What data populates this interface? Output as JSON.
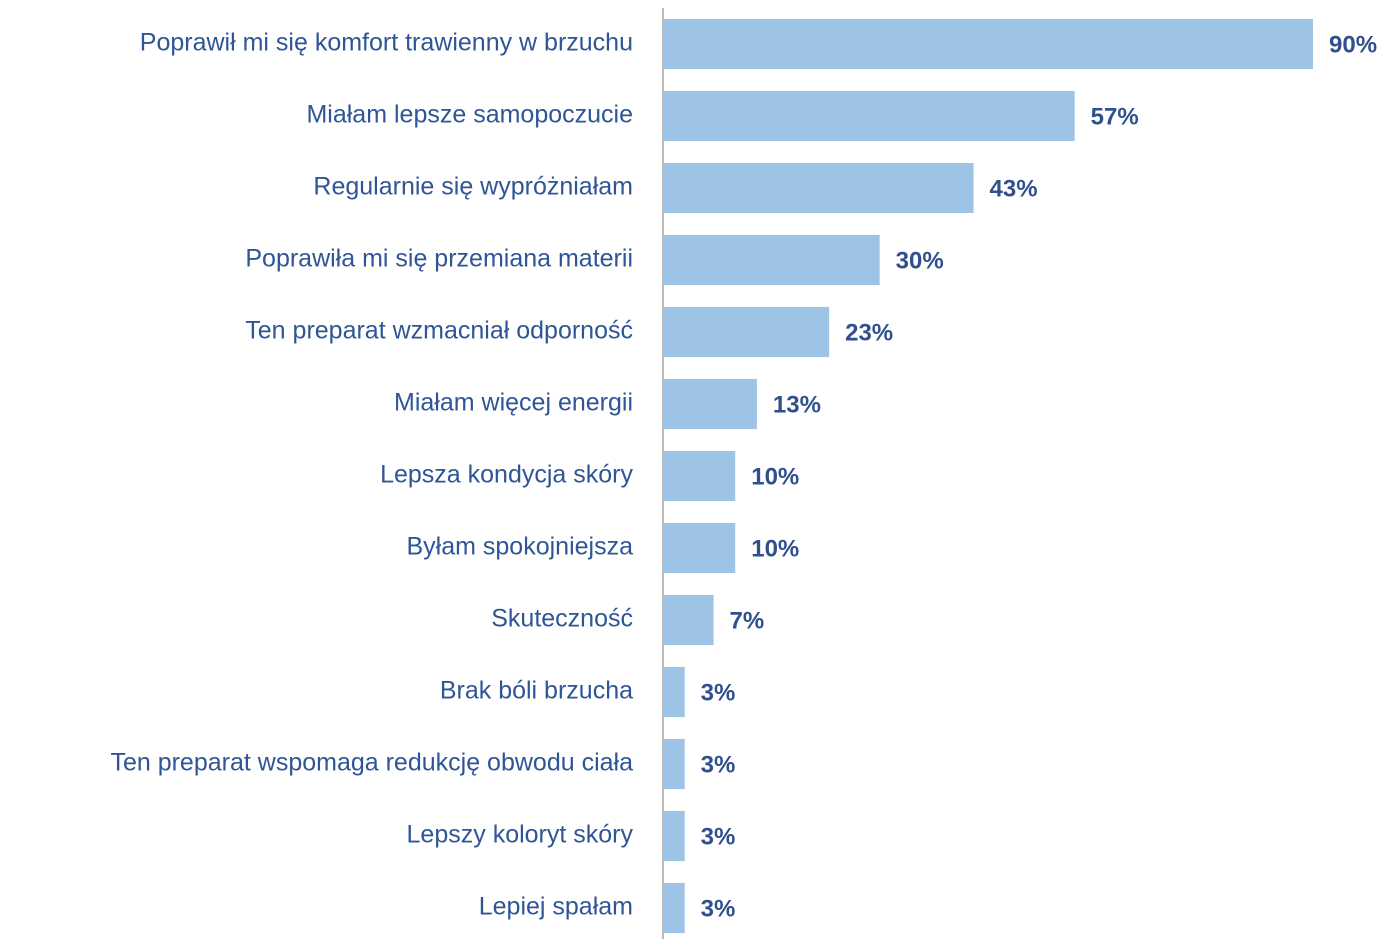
{
  "chart_data": {
    "type": "hbar",
    "categories": [
      "Poprawił mi się komfort trawienny w brzuchu",
      "Miałam lepsze samopoczucie",
      "Regularnie się wypróżniałam",
      "Poprawiła mi się przemiana materii",
      "Ten preparat wzmacniał odporność",
      "Miałam więcej energii",
      "Lepsza kondycja skóry",
      "Byłam spokojniejsza",
      "Skuteczność",
      "Brak bóli brzucha",
      "Ten preparat wspomaga redukcję obwodu ciała",
      "Lepszy koloryt skóry",
      "Lepiej spałam"
    ],
    "values": [
      90,
      57,
      43,
      30,
      23,
      13,
      10,
      10,
      7,
      3,
      3,
      3,
      3
    ],
    "value_labels": [
      "90%",
      "57%",
      "43%",
      "30%",
      "23%",
      "13%",
      "10%",
      "10%",
      "7%",
      "3%",
      "3%",
      "3%",
      "3%"
    ],
    "color": "#9dc3e6"
  }
}
